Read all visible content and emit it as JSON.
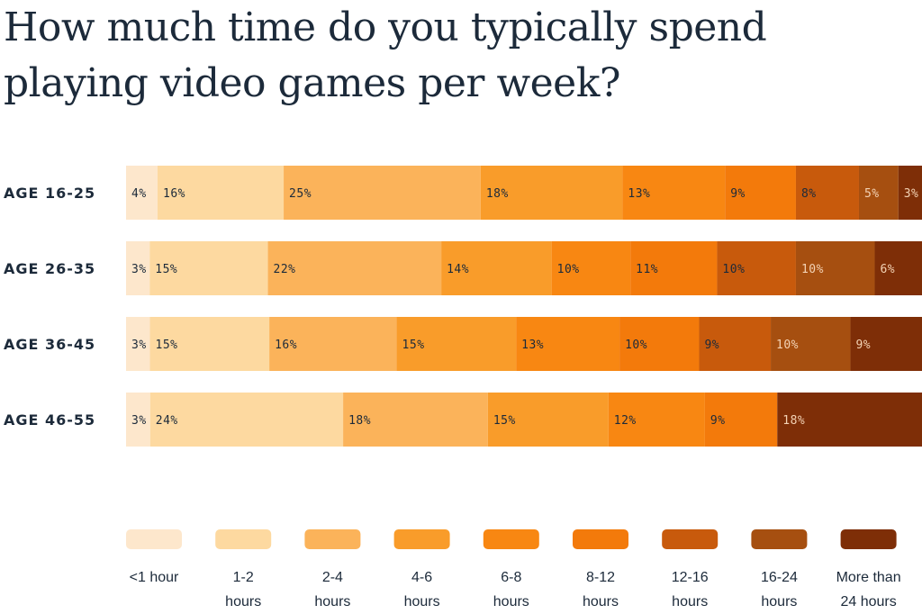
{
  "title": "How much time do you typically spend playing video games per week?",
  "chart_data": {
    "type": "bar",
    "stacked": true,
    "orientation": "horizontal",
    "categories": [
      "AGE 16-25",
      "AGE 26-35",
      "AGE 36-45",
      "AGE 46-55"
    ],
    "series": [
      {
        "name": "<1 hour",
        "color": "#fde7cc",
        "values": [
          4,
          3,
          3,
          3
        ]
      },
      {
        "name": "1-2 hours",
        "color": "#fdd9a0",
        "values": [
          16,
          15,
          15,
          24
        ]
      },
      {
        "name": "2-4 hours",
        "color": "#fbb35a",
        "values": [
          25,
          22,
          16,
          18
        ]
      },
      {
        "name": "4-6 hours",
        "color": "#f99c2a",
        "values": [
          18,
          14,
          15,
          15
        ]
      },
      {
        "name": "6-8 hours",
        "color": "#f88712",
        "values": [
          13,
          10,
          13,
          12
        ]
      },
      {
        "name": "8-12 hours",
        "color": "#f37a0b",
        "values": [
          9,
          11,
          10,
          9
        ]
      },
      {
        "name": "12-16 hours",
        "color": "#c85a0c",
        "values": [
          8,
          10,
          9,
          null
        ]
      },
      {
        "name": "16-24 hours",
        "color": "#a64f10",
        "values": [
          5,
          10,
          10,
          null
        ]
      },
      {
        "name": "More than 24 hours",
        "color": "#7e2e07",
        "values": [
          3,
          6,
          9,
          18
        ]
      }
    ],
    "legend_position": "bottom",
    "grid": false
  },
  "legend": [
    {
      "line1": "<1 hour",
      "line2": ""
    },
    {
      "line1": "1-2",
      "line2": "hours"
    },
    {
      "line1": "2-4",
      "line2": "hours"
    },
    {
      "line1": "4-6",
      "line2": "hours"
    },
    {
      "line1": "6-8",
      "line2": "hours"
    },
    {
      "line1": "8-12",
      "line2": "hours"
    },
    {
      "line1": "12-16",
      "line2": "hours"
    },
    {
      "line1": "16-24",
      "line2": "hours"
    },
    {
      "line1": "More than",
      "line2": "24 hours"
    }
  ]
}
